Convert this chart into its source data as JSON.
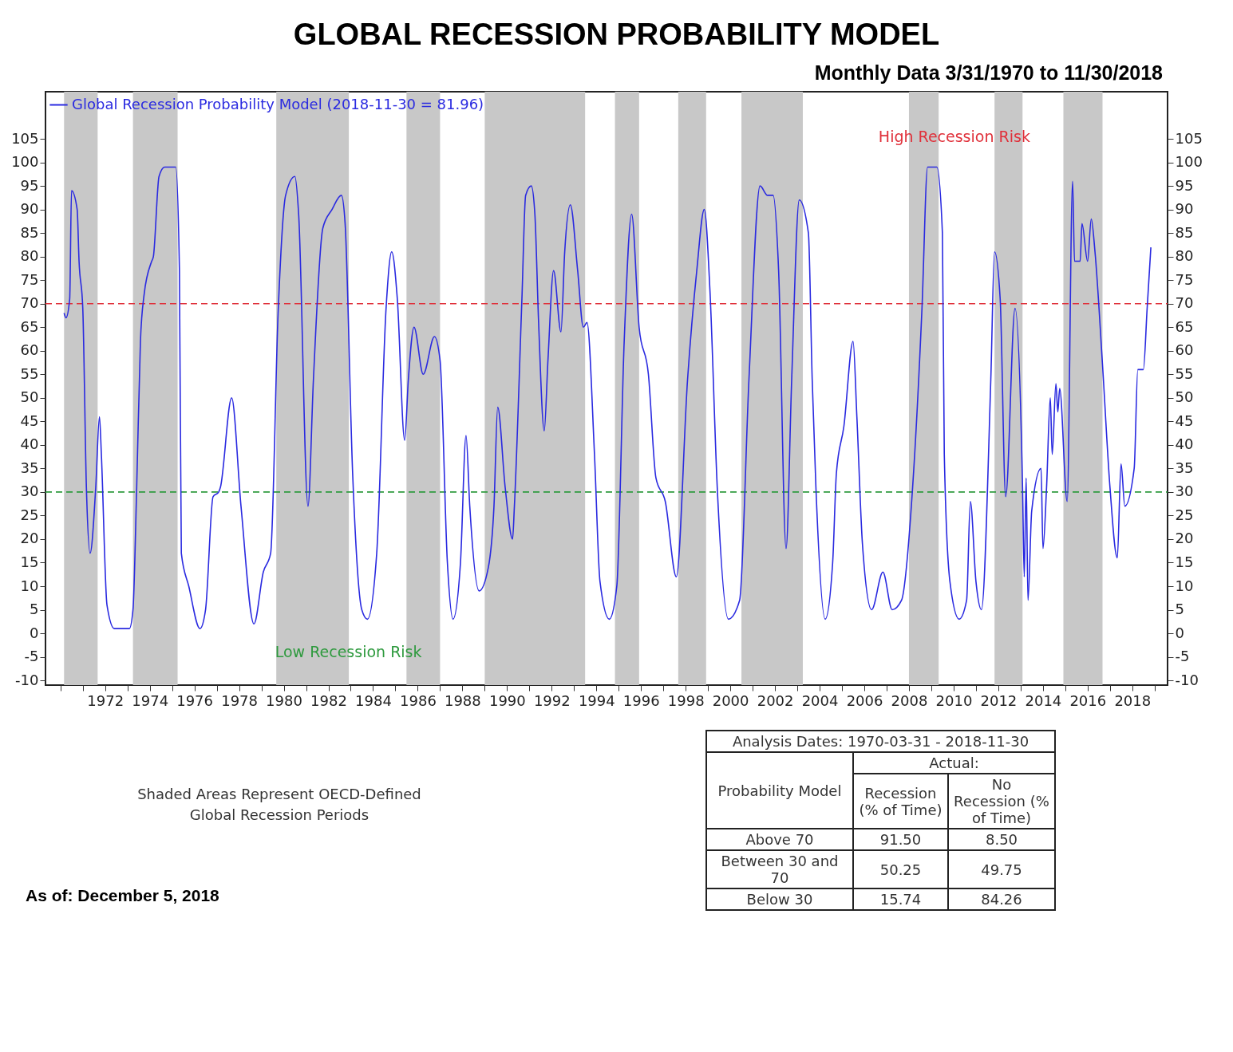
{
  "chart_data": {
    "type": "line",
    "title": "GLOBAL RECESSION PROBABILITY MODEL",
    "subtitle": "Monthly Data 3/31/1970 to 11/30/2018",
    "x": [
      "1970-03",
      "1970-04",
      "1970-06",
      "1970-07",
      "1970-10",
      "1970-11",
      "1971-01",
      "1971-03",
      "1971-05",
      "1971-08",
      "1971-10",
      "1971-11",
      "1972-02",
      "1972-06",
      "1973-02",
      "1973-04",
      "1973-06",
      "1973-08",
      "1973-10",
      "1974-02",
      "1974-03",
      "1974-06",
      "1974-09",
      "1975-03",
      "1975-05",
      "1975-06",
      "1975-10",
      "1976-04",
      "1976-07",
      "1976-11",
      "1977-02",
      "1977-03",
      "1977-09",
      "1978-02",
      "1978-09",
      "1979-02",
      "1979-06",
      "1979-10",
      "1980-02",
      "1980-07",
      "1980-09",
      "1981-02",
      "1981-05",
      "1981-10",
      "1982-03",
      "1982-08",
      "1982-10",
      "1983-02",
      "1983-07",
      "1983-10",
      "1984-03",
      "1984-08",
      "1984-11",
      "1985-02",
      "1985-06",
      "1985-08",
      "1985-11",
      "1986-04",
      "1986-10",
      "1987-01",
      "1987-05",
      "1987-08",
      "1987-12",
      "1988-03",
      "1988-05",
      "1988-10",
      "1989-03",
      "1989-06",
      "1989-08",
      "1989-12",
      "1990-04",
      "1990-05",
      "1990-09",
      "1990-11",
      "1991-02",
      "1991-04",
      "1991-06",
      "1991-09",
      "1991-11",
      "1992-02",
      "1992-06",
      "1992-08",
      "1992-11",
      "1993-03",
      "1993-06",
      "1993-08",
      "1993-12",
      "1994-03",
      "1994-08",
      "1994-12",
      "1995-04",
      "1995-08",
      "1995-12",
      "1996-05",
      "1996-09",
      "1997-02",
      "1997-08",
      "1998-02",
      "1998-07",
      "1998-11",
      "1999-02",
      "1999-06",
      "1999-12",
      "2000-06",
      "2000-11",
      "2001-05",
      "2001-09",
      "2001-12",
      "2002-03",
      "2002-07",
      "2002-10",
      "2003-02",
      "2003-07",
      "2003-09",
      "2003-11",
      "2004-04",
      "2004-08",
      "2004-10",
      "2005-02",
      "2005-07",
      "2005-09",
      "2005-12",
      "2006-05",
      "2006-11",
      "2007-04",
      "2007-09",
      "2008-03",
      "2008-08",
      "2008-11",
      "2009-04",
      "2009-07",
      "2009-08",
      "2009-11",
      "2010-04",
      "2010-08",
      "2010-10",
      "2011-01",
      "2011-04",
      "2011-09",
      "2011-11",
      "2012-02",
      "2012-05",
      "2012-10",
      "2013-02",
      "2013-03",
      "2013-04",
      "2013-05",
      "2013-07",
      "2013-12",
      "2014-01",
      "2014-03",
      "2014-05",
      "2014-06",
      "2014-08",
      "2014-09",
      "2014-10",
      "2015-02",
      "2015-05",
      "2015-06",
      "2015-09",
      "2015-10",
      "2016-01",
      "2016-03",
      "2016-05",
      "2016-09",
      "2017-01",
      "2017-05",
      "2017-07",
      "2017-09",
      "2018-02",
      "2018-04",
      "2018-07",
      "2018-09",
      "2018-11"
    ],
    "series": [
      {
        "name": "Global Recession Probability Model (2018-11-30 = 81.96)",
        "color": "#2a2ae0",
        "values": [
          68,
          67,
          71,
          94,
          90,
          79,
          69,
          31,
          17,
          31,
          46,
          38,
          6,
          1,
          1,
          5,
          31,
          62,
          72,
          79,
          80,
          97,
          99,
          99,
          77,
          17,
          10,
          1,
          5,
          29,
          30,
          31,
          50,
          27,
          2,
          13,
          17,
          68,
          93,
          97,
          89,
          27,
          54,
          86,
          90,
          93,
          87,
          34,
          5,
          3,
          17,
          69,
          81,
          71,
          41,
          54,
          65,
          55,
          63,
          58,
          15,
          3,
          15,
          42,
          27,
          9,
          14,
          27,
          48,
          31,
          20,
          27,
          71,
          93,
          95,
          89,
          66,
          43,
          58,
          77,
          64,
          81,
          91,
          77,
          65,
          66,
          38,
          11,
          3,
          10,
          62,
          89,
          65,
          55,
          33,
          28,
          12,
          54,
          77,
          90,
          73,
          31,
          3,
          7,
          54,
          95,
          93,
          93,
          77,
          18,
          54,
          92,
          85,
          54,
          31,
          3,
          15,
          34,
          44,
          62,
          46,
          19,
          5,
          13,
          5,
          7,
          31,
          69,
          99,
          99,
          85,
          38,
          11,
          3,
          7,
          28,
          11,
          5,
          54,
          81,
          71,
          29,
          69,
          31,
          12,
          33,
          7,
          26,
          35,
          18,
          31,
          50,
          38,
          53,
          47,
          52,
          28,
          96,
          79,
          79,
          87,
          79,
          88,
          81,
          57,
          31,
          16,
          36,
          27,
          35,
          56,
          56,
          69,
          81.96
        ]
      }
    ],
    "xlim": [
      "1969-05",
      "2019-08"
    ],
    "xticks": [
      {
        "value": "1970",
        "label": null
      },
      {
        "value": "1971",
        "label": null
      },
      "1972",
      {
        "value": "1973",
        "label": null
      },
      "1974",
      {
        "value": "1975",
        "label": null
      },
      "1976",
      {
        "value": "1977",
        "label": null
      },
      "1978",
      {
        "value": "1979",
        "label": null
      },
      "1980",
      {
        "value": "1981",
        "label": null
      },
      "1982",
      {
        "value": "1983",
        "label": null
      },
      "1984",
      {
        "value": "1985",
        "label": null
      },
      "1986",
      {
        "value": "1987",
        "label": null
      },
      "1988",
      {
        "value": "1989",
        "label": null
      },
      "1990",
      {
        "value": "1991",
        "label": null
      },
      "1992",
      {
        "value": "1993",
        "label": null
      },
      "1994",
      {
        "value": "1995",
        "label": null
      },
      "1996",
      {
        "value": "1997",
        "label": null
      },
      "1998",
      {
        "value": "1999",
        "label": null
      },
      "2000",
      {
        "value": "2001",
        "label": null
      },
      "2002",
      {
        "value": "2003",
        "label": null
      },
      "2004",
      {
        "value": "2005",
        "label": null
      },
      "2006",
      {
        "value": "2007",
        "label": null
      },
      "2008",
      {
        "value": "2009",
        "label": null
      },
      "2010",
      {
        "value": "2011",
        "label": null
      },
      "2012",
      {
        "value": "2013",
        "label": null
      },
      "2014",
      {
        "value": "2015",
        "label": null
      },
      "2016",
      {
        "value": "2017",
        "label": null
      },
      "2018",
      {
        "value": "2019",
        "label": null
      }
    ],
    "ylim": [
      -11,
      115
    ],
    "yticks": [
      -10,
      -5,
      0,
      5,
      10,
      15,
      20,
      25,
      30,
      35,
      40,
      45,
      50,
      55,
      60,
      65,
      70,
      75,
      80,
      85,
      90,
      95,
      100,
      105
    ],
    "y2lim": [
      -11,
      115
    ],
    "y2ticks": [
      -10,
      -5,
      0,
      5,
      10,
      15,
      20,
      25,
      30,
      35,
      40,
      45,
      50,
      55,
      60,
      65,
      70,
      75,
      80,
      85,
      90,
      95,
      100,
      105
    ],
    "legend": "top left",
    "ref_lines": [
      {
        "axis": "y",
        "value": 70,
        "label": "High Recession Risk",
        "color": "#e0303a",
        "line_style": "dashed"
      },
      {
        "axis": "y",
        "value": 30,
        "label": "Low Recession Risk",
        "color": "#2e9a3e",
        "line_style": "dashed"
      }
    ],
    "bands": [
      {
        "axis": "x",
        "from": "1970-03",
        "to": "1971-09",
        "color": "#c8c8c8"
      },
      {
        "axis": "x",
        "from": "1973-04",
        "to": "1975-04",
        "color": "#c8c8c8"
      },
      {
        "axis": "x",
        "from": "1979-09",
        "to": "1982-12",
        "color": "#c8c8c8"
      },
      {
        "axis": "x",
        "from": "1985-07",
        "to": "1987-01",
        "color": "#c8c8c8"
      },
      {
        "axis": "x",
        "from": "1989-01",
        "to": "1993-07",
        "color": "#c8c8c8"
      },
      {
        "axis": "x",
        "from": "1994-11",
        "to": "1995-12",
        "color": "#c8c8c8"
      },
      {
        "axis": "x",
        "from": "1997-09",
        "to": "1998-12",
        "color": "#c8c8c8"
      },
      {
        "axis": "x",
        "from": "2000-07",
        "to": "2003-04",
        "color": "#c8c8c8"
      },
      {
        "axis": "x",
        "from": "2008-01",
        "to": "2009-05",
        "color": "#c8c8c8"
      },
      {
        "axis": "x",
        "from": "2011-11",
        "to": "2013-02",
        "color": "#c8c8c8"
      },
      {
        "axis": "x",
        "from": "2014-12",
        "to": "2016-09",
        "color": "#c8c8c8"
      }
    ],
    "annotations": [
      "Shaded Areas Represent OECD-Defined Global Recession Periods",
      "As of: December 5, 2018",
      "Analysis Dates: 1970-03-31 - 2018-11-30",
      "Actual:",
      "Probability Model",
      "Recession (% of Time)",
      "No Recession (% of Time)",
      "Above 70",
      "91.50",
      "8.50",
      "Between 30 and 70",
      "50.25",
      "49.75",
      "Below 30",
      "15.74",
      "84.26"
    ]
  }
}
